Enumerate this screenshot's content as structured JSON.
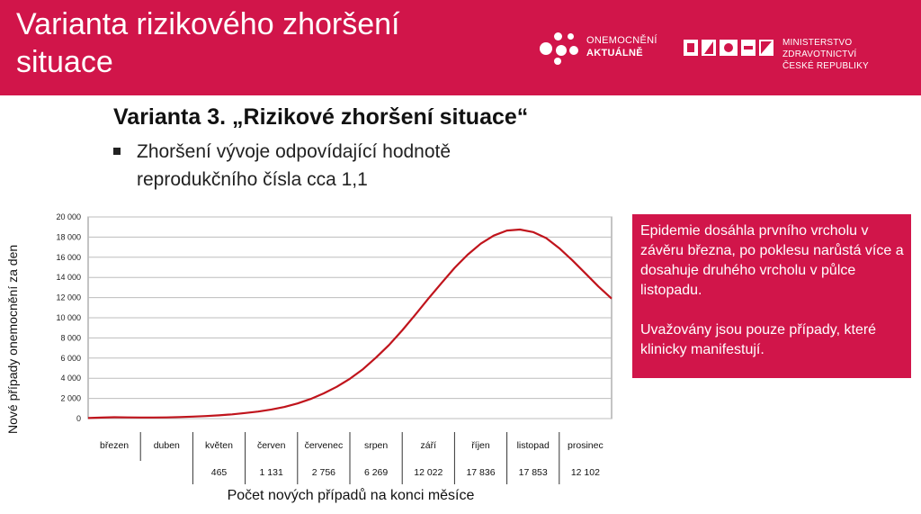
{
  "header": {
    "title": "Varianta rizikového zhoršení situace",
    "logo_onemocneni": {
      "line1": "ONEMOCNĚNÍ",
      "line2": "AKTUÁLNĚ"
    },
    "logo_ministry": {
      "line1": "MINISTERSTVO ZDRAVOTNICTVÍ",
      "line2": "ČESKÉ REPUBLIKY"
    }
  },
  "content": {
    "subtitle": "Varianta 3. „Rizikové zhoršení situace“",
    "bullet": "Zhoršení vývoje odpovídající hodnotě reprodukčního čísla cca 1,1"
  },
  "callout": {
    "paragraph1": "Epidemie dosáhla prvního vrcholu v závěru března, po poklesu narůstá více a dosahuje druhého vrcholu v půlce listopadu.",
    "paragraph2": "Uvažovány jsou pouze případy, které klinicky manifestují."
  },
  "chart_data": {
    "type": "line",
    "ylabel": "Nové případy onemocnění za den",
    "xlabel": "Počet nových případů na konci měsíce",
    "ylim": [
      0,
      20000
    ],
    "yticks": [
      "0",
      "2 000",
      "4 000",
      "6 000",
      "8 000",
      "10 000",
      "12 000",
      "14 000",
      "16 000",
      "18 000",
      "20 000"
    ],
    "ytick_values": [
      0,
      2000,
      4000,
      6000,
      8000,
      10000,
      12000,
      14000,
      16000,
      18000,
      20000
    ],
    "grid": true,
    "color": "#c0141c",
    "categories": [
      "březen",
      "duben",
      "květen",
      "červen",
      "červenec",
      "srpen",
      "září",
      "říjen",
      "listopad",
      "prosinec"
    ],
    "month_end_counts": [
      "",
      "",
      "465",
      "1 131",
      "2 756",
      "6 269",
      "12 022",
      "17 836",
      "17 853",
      "12 102"
    ],
    "series": [
      {
        "x": [
          0,
          0.25,
          0.5,
          0.75,
          1,
          1.25,
          1.5,
          1.75,
          2,
          2.25,
          2.5,
          2.75,
          3,
          3.25,
          3.5,
          3.75,
          4,
          4.25,
          4.5,
          4.75,
          5,
          5.25,
          5.5,
          5.75,
          6,
          6.25,
          6.5,
          6.75,
          7,
          7.25,
          7.5,
          7.75,
          8,
          8.25,
          8.5,
          8.75,
          9,
          9.25,
          9.5,
          9.75,
          10
        ],
        "values": [
          50,
          100,
          130,
          120,
          110,
          110,
          120,
          150,
          200,
          250,
          320,
          420,
          550,
          700,
          900,
          1150,
          1500,
          1950,
          2500,
          3150,
          3950,
          4900,
          6050,
          7300,
          8750,
          10300,
          11900,
          13450,
          14950,
          16250,
          17350,
          18150,
          18650,
          18750,
          18500,
          17900,
          16900,
          15700,
          14400,
          13100,
          11900
        ]
      }
    ]
  }
}
